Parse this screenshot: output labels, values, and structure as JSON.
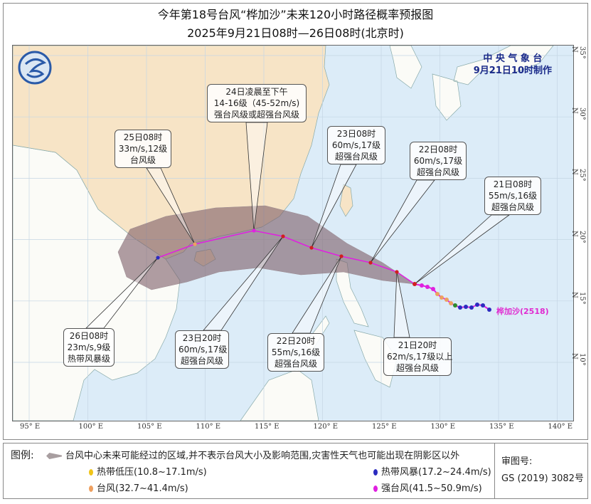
{
  "title": "今年第18号台风“桦加沙”未来120小时路径概率预报图",
  "subtitle": "2025年9月21日08时—26日08时(北京时)",
  "issuer": {
    "name": "中 央 气 象 台",
    "time": "9月21日10时制作"
  },
  "storm_label": "桦加沙(2518)",
  "lon_ticks": [
    "95° E",
    "100° E",
    "105° E",
    "110° E",
    "115° E",
    "120° E",
    "125° E",
    "130° E",
    "135° E",
    "140° E"
  ],
  "lat_ticks": [
    "35° N",
    "30° N",
    "25° N",
    "20° N",
    "15° N",
    "10° N"
  ],
  "callouts": [
    {
      "lines": [
        "24日凌晨至下午",
        "14-16级（45-52m/s)",
        "强台风级或超强台风级"
      ]
    },
    {
      "lines": [
        "25日08时",
        "33m/s,12级",
        "台风级"
      ]
    },
    {
      "lines": [
        "23日08时",
        "60m/s,17级",
        "超强台风级"
      ]
    },
    {
      "lines": [
        "22日08时",
        "60m/s,17级",
        "超强台风级"
      ]
    },
    {
      "lines": [
        "21日08时",
        "55m/s,16级",
        "超强台风级"
      ]
    },
    {
      "lines": [
        "26日08时",
        "23m/s,9级",
        "热带风暴级"
      ]
    },
    {
      "lines": [
        "23日20时",
        "60m/s,17级",
        "超强台风级"
      ]
    },
    {
      "lines": [
        "22日20时",
        "55m/s,16级",
        "超强台风级"
      ]
    },
    {
      "lines": [
        "21日20时",
        "62m/s,17级以上",
        "超强台风级"
      ]
    }
  ],
  "legend": {
    "title": "图例:",
    "cone": "台风中心未来可能经过的区域,并不表示台风大小及影响范围,灾害性天气也可能出现在阴影区以外",
    "items": [
      {
        "label": "热带低压(10.8~17.1m/s)",
        "color": "#f0c419"
      },
      {
        "label": "热带风暴(17.2~24.4m/s)",
        "color": "#2b2bbf"
      },
      {
        "label": "强热带风暴(24.5~32.6m/s)",
        "color": "#2e8b2e"
      },
      {
        "label": "台风(32.7~41.4m/s)",
        "color": "#eea060"
      },
      {
        "label": "强台风(41.5~50.9m/s)",
        "color": "#e020e0"
      },
      {
        "label": "超强台风(≥51m/s)",
        "color": "#d02020"
      }
    ],
    "review_label": "审图号:",
    "review_number": "GS (2019) 3082号"
  },
  "colors": {
    "ocean": "#dcecf8",
    "china": "#f7e4c6",
    "land": "#fbfbf7",
    "cone": "#7d5e68",
    "track": "#e020e0"
  }
}
